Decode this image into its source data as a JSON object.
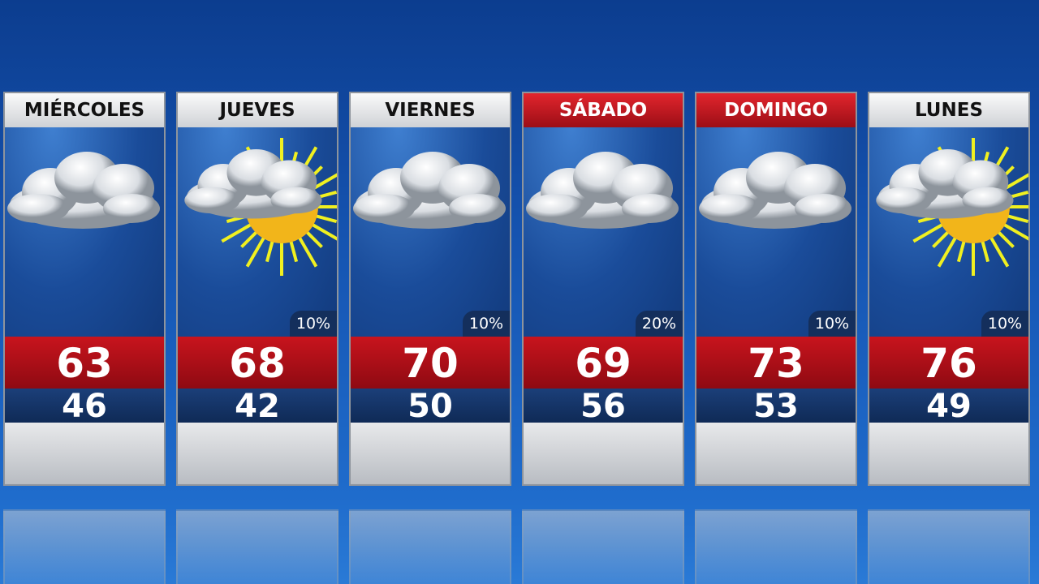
{
  "forecast": {
    "days": [
      {
        "name": "MIÉRCOLES",
        "weekend": false,
        "icon": "cloudy",
        "precip": null,
        "high": 63,
        "low": 46
      },
      {
        "name": "JUEVES",
        "weekend": false,
        "icon": "partly-sunny",
        "precip": "10%",
        "high": 68,
        "low": 42
      },
      {
        "name": "VIERNES",
        "weekend": false,
        "icon": "cloudy",
        "precip": "10%",
        "high": 70,
        "low": 50
      },
      {
        "name": "SÁBADO",
        "weekend": true,
        "icon": "cloudy",
        "precip": "20%",
        "high": 69,
        "low": 56
      },
      {
        "name": "DOMINGO",
        "weekend": true,
        "icon": "cloudy",
        "precip": "10%",
        "high": 73,
        "low": 53
      },
      {
        "name": "LUNES",
        "weekend": false,
        "icon": "partly-sunny",
        "precip": "10%",
        "high": 76,
        "low": 49
      }
    ]
  }
}
